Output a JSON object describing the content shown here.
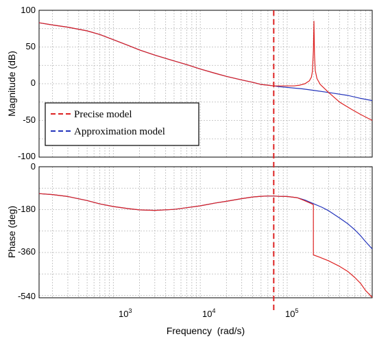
{
  "chart_data": [
    {
      "type": "line",
      "ylabel": "Magnitude (dB)",
      "xlabel": "",
      "xscale": "log",
      "xlim": [
        140,
        950000
      ],
      "ylim": [
        -100,
        100
      ],
      "yticks": [
        -100,
        -50,
        0,
        50,
        100
      ],
      "grid": true,
      "legend_position": "bottom-left",
      "series": [
        {
          "name": "Precise model",
          "color": "#dd2222",
          "x": [
            140,
            200,
            300,
            500,
            700,
            1000,
            1500,
            2000,
            3000,
            5000,
            7000,
            10000,
            15000,
            20000,
            30000,
            40000,
            50000,
            60000,
            70000,
            80000,
            100000,
            120000,
            140000,
            160000,
            180000,
            190000,
            195000,
            200000,
            203000,
            206000,
            210000,
            220000,
            240000,
            300000,
            400000,
            550000,
            700000,
            950000
          ],
          "y": [
            83,
            80,
            77,
            72,
            67,
            60,
            52,
            46,
            39,
            31,
            26,
            20,
            14,
            10,
            5,
            2,
            -1,
            -2,
            -3,
            -3,
            -3,
            -3,
            -2,
            0,
            4,
            9,
            17,
            45,
            85,
            40,
            18,
            7,
            -1,
            -12,
            -25,
            -35,
            -42,
            -50
          ]
        },
        {
          "name": "Approximation model",
          "color": "#2233bb",
          "x": [
            140,
            200,
            300,
            500,
            700,
            1000,
            1500,
            2000,
            3000,
            5000,
            7000,
            10000,
            15000,
            20000,
            30000,
            40000,
            50000,
            60000,
            70000,
            80000,
            100000,
            150000,
            200000,
            300000,
            500000,
            700000,
            950000
          ],
          "y": [
            83,
            80,
            77,
            72,
            67,
            60,
            52,
            46,
            39,
            31,
            26,
            20,
            14,
            10,
            5,
            2,
            -1,
            -2,
            -3,
            -4,
            -5,
            -7,
            -9,
            -12,
            -16,
            -20,
            -23
          ]
        }
      ]
    },
    {
      "type": "line",
      "ylabel": "Phase (deg)",
      "xlabel": "Frequency  (rad/s)",
      "xscale": "log",
      "xlim": [
        140,
        950000
      ],
      "ylim": [
        -550,
        0
      ],
      "yticks": [
        -540,
        -360,
        -180,
        0
      ],
      "xticks": [
        "10^3",
        "10^4",
        "10^5"
      ],
      "grid": true,
      "series": [
        {
          "name": "Precise model",
          "color": "#dd2222",
          "x": [
            140,
            200,
            300,
            500,
            700,
            1000,
            1500,
            2000,
            3000,
            5000,
            7000,
            10000,
            15000,
            20000,
            30000,
            40000,
            50000,
            60000,
            70000,
            80000,
            100000,
            130000,
            160000,
            190000,
            200000,
            200001,
            230000,
            300000,
            400000,
            500000,
            600000,
            700000,
            800000,
            950000
          ],
          "y": [
            -113,
            -117,
            -125,
            -142,
            -156,
            -167,
            -176,
            -181,
            -183,
            -179,
            -172,
            -164,
            -152,
            -145,
            -134,
            -127,
            -124,
            -123,
            -123,
            -124,
            -125,
            -130,
            -143,
            -155,
            -160,
            -370,
            -378,
            -395,
            -418,
            -440,
            -465,
            -490,
            -520,
            -548
          ]
        },
        {
          "name": "Approximation model",
          "color": "#2233bb",
          "x": [
            140,
            200,
            300,
            500,
            700,
            1000,
            1500,
            2000,
            3000,
            5000,
            7000,
            10000,
            15000,
            20000,
            30000,
            40000,
            50000,
            60000,
            70000,
            80000,
            100000,
            130000,
            160000,
            200000,
            250000,
            300000,
            400000,
            500000,
            600000,
            700000,
            800000,
            950000
          ],
          "y": [
            -113,
            -117,
            -125,
            -142,
            -156,
            -167,
            -176,
            -181,
            -183,
            -179,
            -172,
            -164,
            -152,
            -145,
            -134,
            -127,
            -124,
            -123,
            -123,
            -124,
            -125,
            -130,
            -140,
            -155,
            -170,
            -185,
            -215,
            -240,
            -265,
            -290,
            -315,
            -345
          ]
        }
      ]
    }
  ],
  "marker": {
    "x": 70000,
    "color": "#dd2222"
  },
  "tick_labels": {
    "mag_y": [
      "100",
      "50",
      "0",
      "-50",
      "-100"
    ],
    "phase_y": [
      "0",
      "-180",
      "-360",
      "-540"
    ],
    "x": [
      {
        "base": "10",
        "exp": "3"
      },
      {
        "base": "10",
        "exp": "4"
      },
      {
        "base": "10",
        "exp": "5"
      }
    ]
  },
  "legend": [
    {
      "label": "Precise model",
      "color": "#dd2222"
    },
    {
      "label": "Approximation model",
      "color": "#2233bb"
    }
  ]
}
